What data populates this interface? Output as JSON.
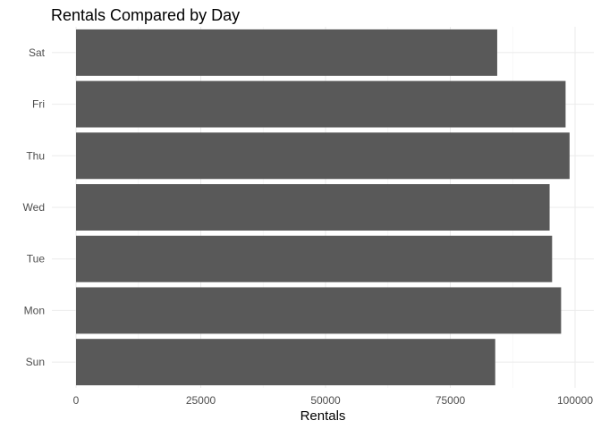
{
  "chart_data": {
    "type": "bar",
    "orientation": "horizontal",
    "title": "Rentals Compared by Day",
    "xlabel": "Rentals",
    "ylabel": "",
    "categories": [
      "Sun",
      "Mon",
      "Tue",
      "Wed",
      "Thu",
      "Fri",
      "Sat"
    ],
    "values": [
      84000,
      97200,
      95400,
      94900,
      98900,
      98100,
      84400
    ],
    "xlim": [
      0,
      104000
    ],
    "xticks": [
      0,
      25000,
      50000,
      75000,
      100000
    ],
    "xtick_labels": [
      "0",
      "25000",
      "50000",
      "75000",
      "100000"
    ],
    "grid": true,
    "bar_color": "#595959"
  }
}
